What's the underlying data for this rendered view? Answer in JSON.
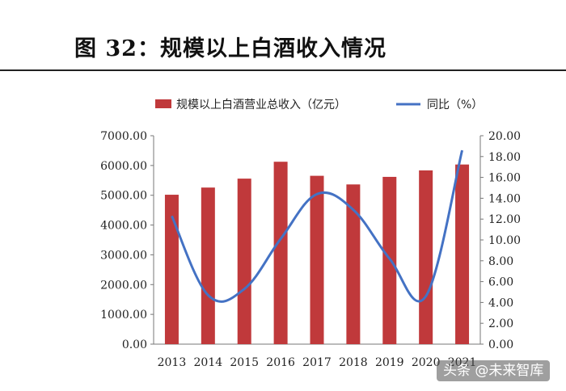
{
  "figure": {
    "title": "图 32：规模以上白酒收入情况"
  },
  "watermark": "头条 @未来智库",
  "chart_data": {
    "type": "bar",
    "categories": [
      "2013",
      "2014",
      "2015",
      "2016",
      "2017",
      "2018",
      "2019",
      "2020",
      "2021"
    ],
    "series": [
      {
        "name": "规模以上白酒营业总收入（亿元）",
        "type": "bar",
        "axis": "left",
        "color": "#C0393B",
        "values": [
          5018,
          5259,
          5559,
          6126,
          5654,
          5364,
          5618,
          5836,
          6033
        ]
      },
      {
        "name": "同比（%）",
        "type": "line",
        "axis": "right",
        "color": "#4472C4",
        "values": [
          12.3,
          4.7,
          5.3,
          10.1,
          14.4,
          12.9,
          8.2,
          4.6,
          18.6
        ]
      }
    ],
    "y_left": {
      "lim": [
        0,
        7000
      ],
      "ticks": [
        "0.00",
        "1000.00",
        "2000.00",
        "3000.00",
        "4000.00",
        "5000.00",
        "6000.00",
        "7000.00"
      ]
    },
    "y_right": {
      "lim": [
        0,
        20
      ],
      "ticks": [
        "0.00",
        "2.00",
        "4.00",
        "6.00",
        "8.00",
        "10.00",
        "12.00",
        "14.00",
        "16.00",
        "18.00",
        "20.00"
      ]
    },
    "legend_position": "top",
    "grid": false
  }
}
